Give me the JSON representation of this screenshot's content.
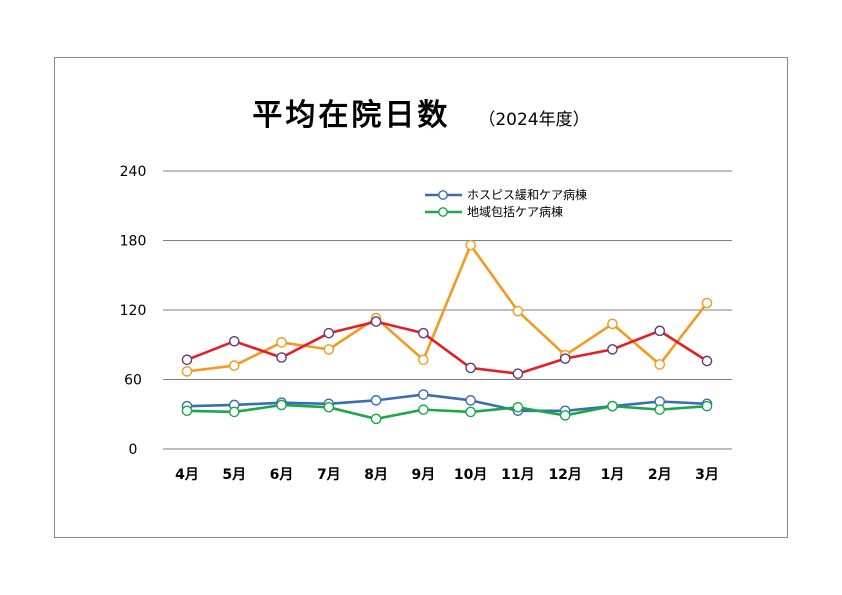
{
  "title": {
    "main": "平均在院日数",
    "sub": "（2024年度）"
  },
  "chart_data": {
    "type": "line",
    "categories": [
      "4月",
      "5月",
      "6月",
      "7月",
      "8月",
      "9月",
      "10月",
      "11月",
      "12月",
      "1月",
      "2月",
      "3月"
    ],
    "ylim": [
      0,
      240
    ],
    "yticks": [
      0,
      60,
      120,
      180,
      240
    ],
    "grid": true,
    "legend_position": "top-right",
    "series": [
      {
        "name": "ホスピス緩和ケア病棟",
        "color": "#3a6db3",
        "values": [
          37,
          38,
          40,
          39,
          42,
          47,
          42,
          33,
          33,
          37,
          41,
          39
        ],
        "in_legend": true
      },
      {
        "name": "地域包括ケア病棟",
        "color": "#19a84a",
        "values": [
          33,
          32,
          38,
          36,
          26,
          34,
          32,
          36,
          29,
          37,
          34,
          37
        ],
        "in_legend": true
      },
      {
        "name": "",
        "color": "#e31f26",
        "marker_edge": "#5b3d82",
        "values": [
          77,
          93,
          79,
          100,
          110,
          100,
          70,
          65,
          78,
          86,
          102,
          76
        ],
        "in_legend": false
      },
      {
        "name": "",
        "color": "#f39a1e",
        "values": [
          67,
          72,
          92,
          86,
          113,
          77,
          176,
          119,
          81,
          108,
          73,
          126
        ],
        "in_legend": false
      }
    ]
  }
}
